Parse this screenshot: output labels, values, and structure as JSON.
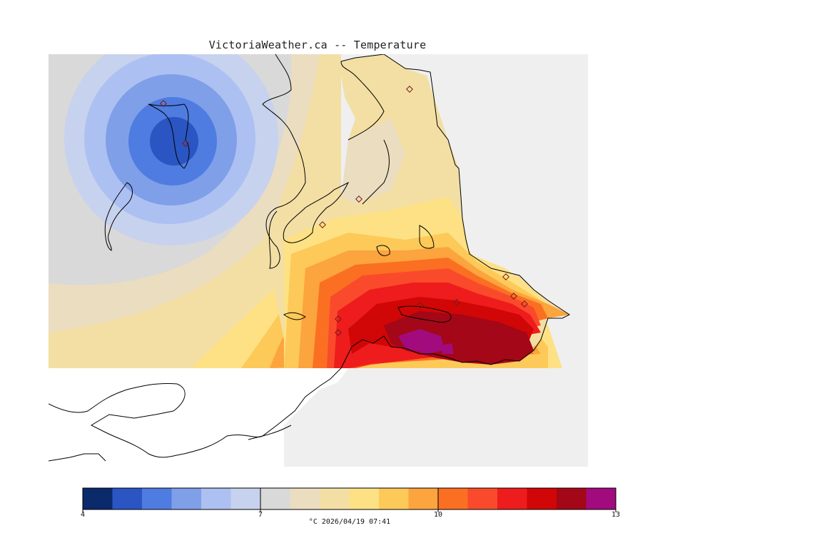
{
  "title": "VictoriaWeather.ca -- Temperature",
  "legend": {
    "min": 4,
    "max": 13,
    "tick_labels": [
      "4",
      "7",
      "10",
      "13"
    ],
    "colors": [
      "#0b2a6b",
      "#2a55c2",
      "#4f7ce0",
      "#7f9fe8",
      "#adc0f2",
      "#c7d2ee",
      "#d9d9d9",
      "#ebddc0",
      "#f3dfa4",
      "#fde184",
      "#fdc958",
      "#fca43e",
      "#fb6f22",
      "#fa4a2c",
      "#ee1c1c",
      "#d10606",
      "#a40717",
      "#a20b7e"
    ]
  },
  "caption": "°C  2026/04/19 07:41"
}
